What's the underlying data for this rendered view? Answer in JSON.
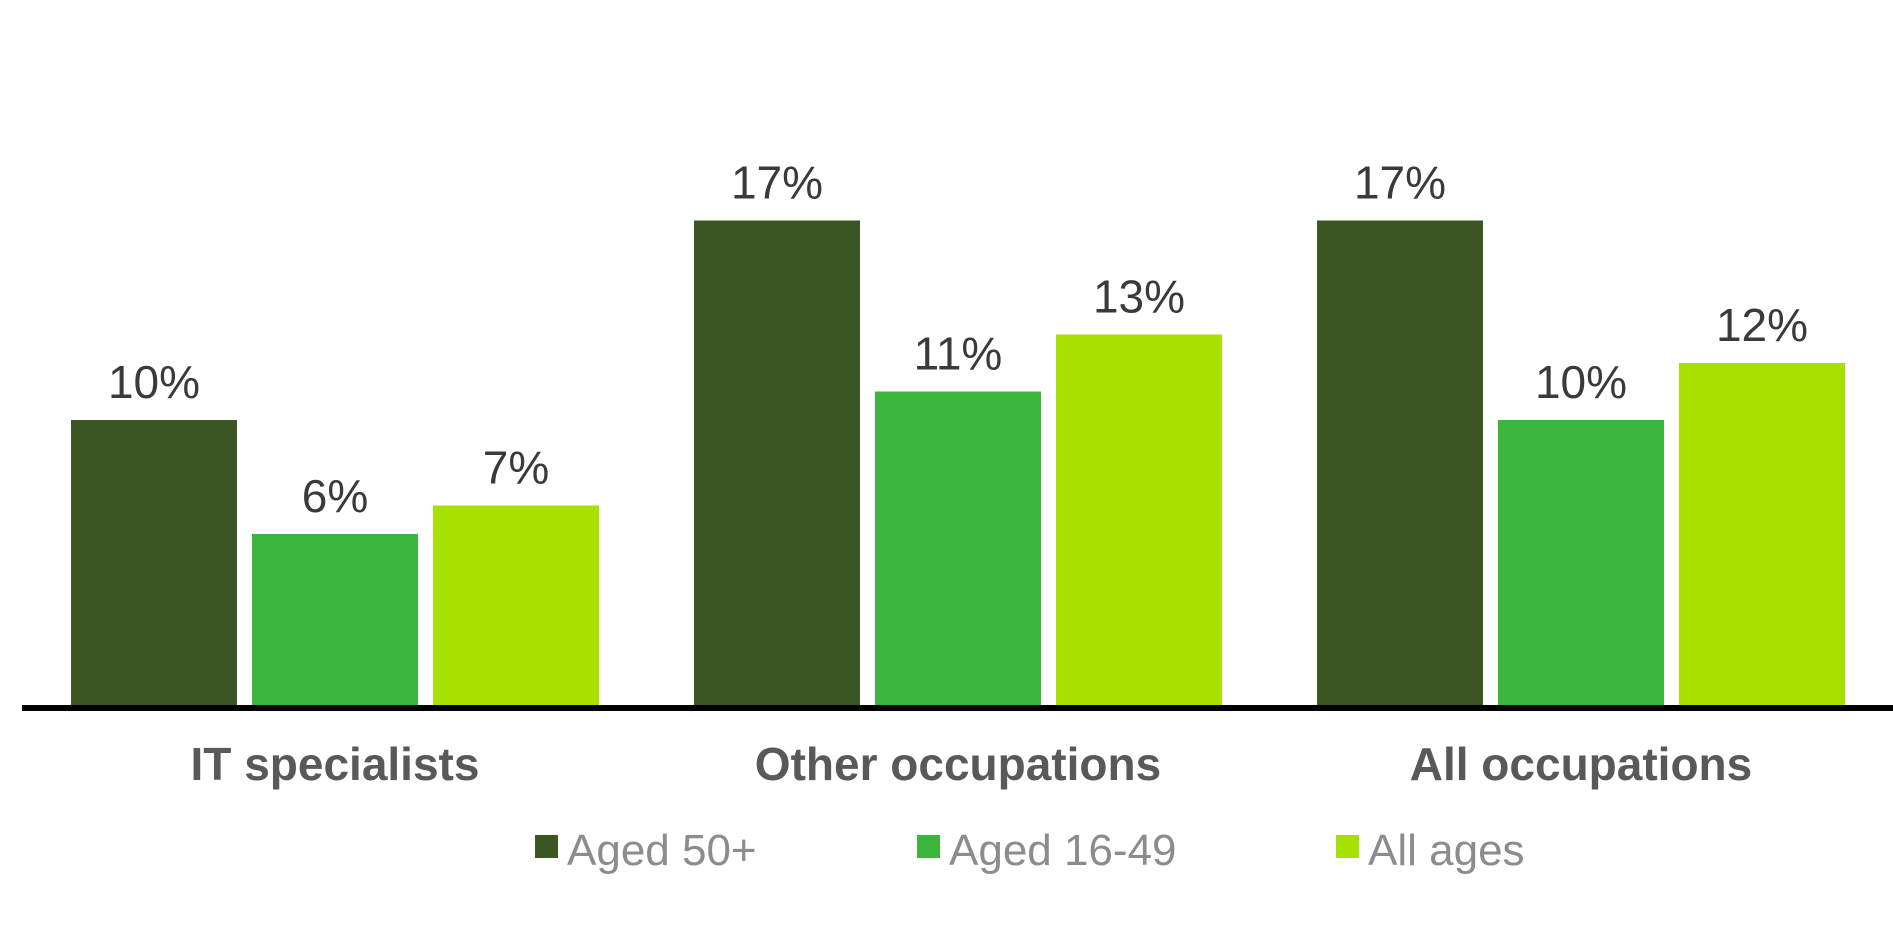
{
  "chart_data": {
    "type": "bar",
    "categories": [
      "IT specialists",
      "Other occupations",
      "All occupations"
    ],
    "series": [
      {
        "name": "Aged 50+",
        "color": "#3b5523",
        "values": [
          10,
          17,
          17
        ],
        "labels": [
          "10%",
          "17%",
          "17%"
        ]
      },
      {
        "name": "Aged 16-49",
        "color": "#3cb53c",
        "values": [
          6,
          11,
          10
        ],
        "labels": [
          "6%",
          "11%",
          "10%"
        ]
      },
      {
        "name": "All ages",
        "color": "#a6e100",
        "values": [
          7,
          13,
          12
        ],
        "labels": [
          "7%",
          "13%",
          "12%"
        ]
      }
    ],
    "ylim": [
      0,
      20
    ],
    "grid": false,
    "legend_position": "bottom"
  }
}
